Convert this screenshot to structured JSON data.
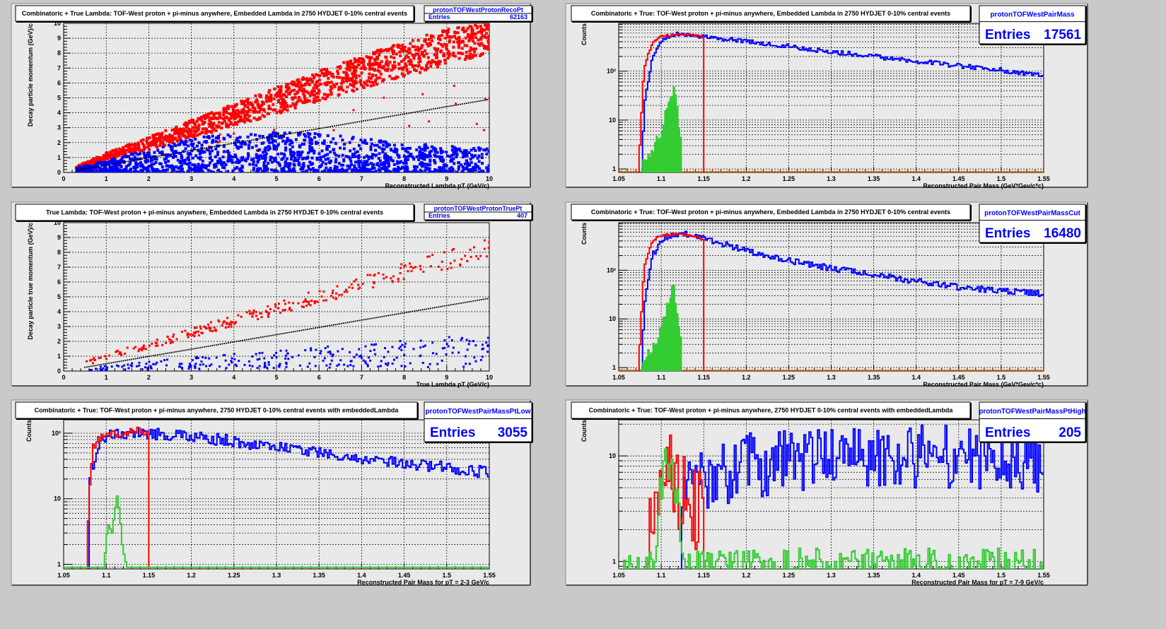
{
  "colors": {
    "red": "#ff0000",
    "blue": "#0000ff",
    "green": "#33cc33",
    "black": "#000000",
    "orange": "#ff8000"
  },
  "chart_data": [
    {
      "type": "scatter",
      "title": "Combinatoric + True Lambda: TOF-West proton + pi-minus anywhere, Embedded Lambda in 2750 HYDJET 0-10% central events",
      "stats": {
        "name": "protonTOFWestProtonRecoPt",
        "entries_label": "Entries",
        "entries": "62163",
        "size": "small"
      },
      "xlabel": "Reconstructed Lambda pT (GeV/c)",
      "ylabel": "Decay particle momentum (GeV)/c",
      "xlim": [
        0,
        10
      ],
      "ylim": [
        0,
        10
      ],
      "log_y": false,
      "x_ticks": [
        "0",
        "1",
        "2",
        "3",
        "4",
        "5",
        "6",
        "7",
        "8",
        "9",
        "10"
      ],
      "y_ticks": [
        "0",
        "1",
        "2",
        "3",
        "4",
        "5",
        "6",
        "7",
        "8",
        "9",
        "10"
      ],
      "grid": true,
      "series": [
        {
          "color": "red",
          "density": "dense",
          "x_min": 0.3,
          "x_max": 10,
          "band": {
            "lower": {
              "x": [
                0.3,
                1,
                2,
                3,
                4,
                5,
                6,
                7,
                8,
                9,
                10
              ],
              "y": [
                0.3,
                0.8,
                1.5,
                2.3,
                3.1,
                3.9,
                4.8,
                5.6,
                6.4,
                7.2,
                8.0
              ]
            },
            "upper": {
              "x": [
                0.3,
                1,
                2,
                3,
                4,
                5,
                6,
                7,
                8,
                9,
                10
              ],
              "y": [
                0.4,
                1.3,
                2.4,
                3.5,
                4.6,
                5.7,
                6.8,
                7.8,
                8.8,
                9.6,
                10.0
              ]
            }
          }
        },
        {
          "color": "blue",
          "density": "dense",
          "x_min": 0.3,
          "x_max": 10,
          "band": {
            "lower": {
              "x": [
                0.3,
                10
              ],
              "y": [
                0,
                0
              ]
            },
            "upper": {
              "x": [
                0.3,
                1,
                2,
                3,
                4,
                5,
                6,
                7,
                8,
                9,
                10
              ],
              "y": [
                0.3,
                0.8,
                1.6,
                2.3,
                2.6,
                2.7,
                2.6,
                2.3,
                2.0,
                1.8,
                1.7
              ]
            }
          }
        },
        {
          "color": "black",
          "density": "line",
          "x_min": 0.3,
          "x_max": 10,
          "band": {
            "lower": {
              "x": [
                0.3,
                10
              ],
              "y": [
                0.15,
                4.9
              ]
            },
            "upper": {
              "x": [
                0.3,
                10
              ],
              "y": [
                0.15,
                4.9
              ]
            }
          }
        }
      ]
    },
    {
      "type": "histogram",
      "title": "Combinatoric + True: TOF-West proton + pi-minus anywhere, Embedded Lambda in 2750 HYDJET 0-10% central events",
      "stats": {
        "name": "protonTOFWestPairMass",
        "entries_label": "Entries",
        "entries": "17561",
        "size": "large"
      },
      "xlabel": "Reconstructed Pair Mass (GeV*Gev/c*c)",
      "ylabel": "Counts",
      "xlim": [
        1.05,
        1.55
      ],
      "ylim": [
        0.85,
        950
      ],
      "log_y": true,
      "x_ticks": [
        "1.05",
        "1.1",
        "1.15",
        "1.2",
        "1.25",
        "1.3",
        "1.35",
        "1.4",
        "1.45",
        "1.5",
        "1.55"
      ],
      "y_ticks": [
        {
          "v": 1,
          "label": "1"
        },
        {
          "v": 10,
          "label": "10"
        },
        {
          "v": 100,
          "label": "10²"
        }
      ],
      "grid": true,
      "series": [
        {
          "color": "blue",
          "style": "step",
          "x_start": 1.078,
          "x_end": 1.55,
          "x": [
            1.078,
            1.08,
            1.09,
            1.1,
            1.11,
            1.12,
            1.13,
            1.15,
            1.2,
            1.25,
            1.3,
            1.35,
            1.4,
            1.45,
            1.5,
            1.55
          ],
          "y": [
            2,
            20,
            200,
            420,
            520,
            560,
            560,
            500,
            400,
            320,
            250,
            200,
            160,
            130,
            105,
            80
          ],
          "noise": 0.07
        },
        {
          "color": "red",
          "style": "step",
          "x_start": 1.073,
          "x_end": 1.15,
          "x": [
            1.073,
            1.075,
            1.078,
            1.08,
            1.09,
            1.1,
            1.12,
            1.14,
            1.15
          ],
          "y": [
            0.85,
            3,
            30,
            120,
            400,
            520,
            560,
            540,
            500
          ],
          "noise": 0.03,
          "drop_to_floor": true
        },
        {
          "color": "green",
          "style": "filled",
          "x_start": 1.076,
          "x_end": 1.124,
          "x": [
            1.076,
            1.08,
            1.09,
            1.1,
            1.105,
            1.11,
            1.115,
            1.12,
            1.124
          ],
          "y": [
            0.9,
            1.4,
            2.5,
            6,
            14,
            30,
            45,
            12,
            3
          ],
          "noise": 0.15
        }
      ]
    },
    {
      "type": "scatter",
      "title": "True Lambda: TOF-West proton + pi-minus anywhere, Embedded Lambda in 2750 HYDJET 0-10% central events",
      "stats": {
        "name": "protonTOFWestProtonTruePt",
        "entries_label": "Entries",
        "entries": "407",
        "size": "small"
      },
      "xlabel": "True Lambda pT (GeV/c)",
      "ylabel": "Decay particle true momentum (GeV)/c",
      "xlim": [
        0,
        10
      ],
      "ylim": [
        0,
        10
      ],
      "log_y": false,
      "x_ticks": [
        "0",
        "1",
        "2",
        "3",
        "4",
        "5",
        "6",
        "7",
        "8",
        "9",
        "10"
      ],
      "y_ticks": [
        "0",
        "1",
        "2",
        "3",
        "4",
        "5",
        "6",
        "7",
        "8",
        "9",
        "10"
      ],
      "grid": true,
      "series": [
        {
          "color": "red",
          "density": "sparse",
          "x_min": 0.5,
          "x_max": 10,
          "band": {
            "lower": {
              "x": [
                0.5,
                10
              ],
              "y": [
                0.35,
                7.6
              ]
            },
            "upper": {
              "x": [
                0.5,
                10
              ],
              "y": [
                0.7,
                9.0
              ]
            }
          }
        },
        {
          "color": "blue",
          "density": "sparse",
          "x_min": 0.5,
          "x_max": 10,
          "band": {
            "lower": {
              "x": [
                0.5,
                10
              ],
              "y": [
                0.05,
                0.3
              ]
            },
            "upper": {
              "x": [
                0.5,
                4,
                10
              ],
              "y": [
                0.25,
                1.2,
                2.5
              ]
            }
          }
        },
        {
          "color": "black",
          "density": "line",
          "x_min": 0.5,
          "x_max": 10,
          "band": {
            "lower": {
              "x": [
                0.5,
                10
              ],
              "y": [
                0.25,
                4.9
              ]
            },
            "upper": {
              "x": [
                0.5,
                10
              ],
              "y": [
                0.25,
                4.9
              ]
            }
          }
        }
      ]
    },
    {
      "type": "histogram",
      "title": "Combinatoric + True: TOF-West proton + pi-minus anywhere, Embedded Lambda in 2750 HYDJET 0-10% central events",
      "stats": {
        "name": "protonTOFWestPairMassCut",
        "entries_label": "Entries",
        "entries": "16480",
        "size": "large"
      },
      "xlabel": "Reconstructed Pair Mass (GeV*Gev/c*c)",
      "ylabel": "Counts",
      "xlim": [
        1.05,
        1.55
      ],
      "ylim": [
        0.85,
        950
      ],
      "log_y": true,
      "x_ticks": [
        "1.05",
        "1.1",
        "1.15",
        "1.2",
        "1.25",
        "1.3",
        "1.35",
        "1.4",
        "1.45",
        "1.5",
        "1.55"
      ],
      "y_ticks": [
        {
          "v": 1,
          "label": "1"
        },
        {
          "v": 10,
          "label": "10"
        },
        {
          "v": 100,
          "label": "10²"
        }
      ],
      "grid": true,
      "series": [
        {
          "color": "blue",
          "style": "step",
          "x_start": 1.078,
          "x_end": 1.55,
          "x": [
            1.078,
            1.08,
            1.09,
            1.1,
            1.11,
            1.12,
            1.13,
            1.15,
            1.2,
            1.25,
            1.3,
            1.35,
            1.4,
            1.45,
            1.5,
            1.55
          ],
          "y": [
            2,
            20,
            200,
            420,
            520,
            560,
            560,
            450,
            250,
            160,
            110,
            80,
            60,
            45,
            38,
            33
          ],
          "noise": 0.09
        },
        {
          "color": "red",
          "style": "step",
          "x_start": 1.073,
          "x_end": 1.15,
          "x": [
            1.073,
            1.075,
            1.078,
            1.08,
            1.09,
            1.1,
            1.12,
            1.14,
            1.15
          ],
          "y": [
            0.85,
            3,
            30,
            120,
            400,
            520,
            560,
            480,
            430
          ],
          "noise": 0.03,
          "drop_to_floor": true
        },
        {
          "color": "green",
          "style": "filled",
          "x_start": 1.076,
          "x_end": 1.124,
          "x": [
            1.076,
            1.08,
            1.09,
            1.1,
            1.105,
            1.11,
            1.115,
            1.12,
            1.124
          ],
          "y": [
            0.9,
            1.4,
            2.5,
            6,
            14,
            30,
            45,
            12,
            3
          ],
          "noise": 0.15
        }
      ]
    },
    {
      "type": "histogram",
      "title": "Combinatoric + True: TOF-West proton + pi-minus anywhere, 2750 HYDJET 0-10% central events with embeddedLambda",
      "stats": {
        "name": "protonTOFWestPairMassPtLow",
        "entries_label": "Entries",
        "entries": "3055",
        "size": "large"
      },
      "xlabel": "Reconstructed Pair Mass for pT = 2-3 GeV/c",
      "ylabel": "Counts",
      "xlim": [
        1.05,
        1.55
      ],
      "ylim": [
        0.85,
        160
      ],
      "log_y": true,
      "x_ticks": [
        "1.05",
        "1.1",
        "1.15",
        "1.2",
        "1.25",
        "1.3",
        "1.35",
        "1.4",
        "1.45",
        "1.5",
        "1.55"
      ],
      "y_ticks": [
        {
          "v": 1,
          "label": "1"
        },
        {
          "v": 10,
          "label": "10"
        },
        {
          "v": 100,
          "label": "10²"
        }
      ],
      "grid": true,
      "series": [
        {
          "color": "blue",
          "style": "step",
          "x_start": 1.08,
          "x_end": 1.55,
          "x": [
            1.08,
            1.09,
            1.1,
            1.12,
            1.15,
            1.2,
            1.25,
            1.3,
            1.35,
            1.4,
            1.45,
            1.5,
            1.55
          ],
          "y": [
            20,
            60,
            90,
            100,
            100,
            90,
            75,
            60,
            50,
            42,
            35,
            30,
            25
          ],
          "noise": 0.13
        },
        {
          "color": "red",
          "style": "step",
          "x_start": 1.077,
          "x_end": 1.15,
          "x": [
            1.077,
            1.079,
            1.082,
            1.085,
            1.09,
            1.1,
            1.12,
            1.14,
            1.15
          ],
          "y": [
            0.85,
            5,
            25,
            60,
            80,
            95,
            100,
            110,
            95
          ],
          "noise": 0.08,
          "drop_to_floor": true
        },
        {
          "color": "green",
          "style": "step",
          "x_start": 1.05,
          "x_end": 1.55,
          "x": [
            1.05,
            1.098,
            1.1,
            1.103,
            1.107,
            1.11,
            1.113,
            1.116,
            1.119,
            1.122,
            1.125,
            1.55
          ],
          "y": [
            0.9,
            0.9,
            2.5,
            4,
            3,
            6,
            11,
            6,
            2,
            1.2,
            0.9,
            0.9
          ],
          "noise": 0.0
        }
      ]
    },
    {
      "type": "histogram",
      "title": "Combinatoric + True: TOF-West proton + pi-minus anywhere, 2750 HYDJET 0-10% central events with embeddedLambda",
      "stats": {
        "name": "protonTOFWestPairMassPtHigh",
        "entries_label": "Entries",
        "entries": "205",
        "size": "large"
      },
      "xlabel": "Reconstructed Pair Mass for pT = 7-9 GeV/c",
      "ylabel": "Counts",
      "xlim": [
        1.05,
        1.55
      ],
      "ylim": [
        0.85,
        22
      ],
      "log_y": true,
      "x_ticks": [
        "1.05",
        "1.1",
        "1.15",
        "1.2",
        "1.25",
        "1.3",
        "1.35",
        "1.4",
        "1.45",
        "1.5",
        "1.55"
      ],
      "y_ticks": [
        {
          "v": 1,
          "label": "1"
        },
        {
          "v": 10,
          "label": "10"
        }
      ],
      "grid": true,
      "series": [
        {
          "color": "blue",
          "style": "step",
          "x_start": 1.125,
          "x_end": 1.55,
          "x": [
            1.125,
            1.15,
            1.2,
            1.3,
            1.4,
            1.5,
            1.55
          ],
          "y": [
            4,
            6,
            8,
            10,
            10,
            10,
            9
          ],
          "noise": 0.45
        },
        {
          "color": "red",
          "style": "step",
          "x_start": 1.085,
          "x_end": 1.15,
          "x": [
            1.085,
            1.09,
            1.1,
            1.11,
            1.12,
            1.13,
            1.14,
            1.15
          ],
          "y": [
            1.2,
            3,
            6,
            7,
            5,
            4,
            3,
            3
          ],
          "noise": 0.55,
          "drop_to_floor": true
        },
        {
          "color": "green",
          "style": "step",
          "x_start": 1.05,
          "x_end": 1.55,
          "x": [
            1.05,
            1.092,
            1.095,
            1.1,
            1.105,
            1.11,
            1.115,
            1.12,
            1.125,
            1.13,
            1.55
          ],
          "y": [
            0.9,
            0.9,
            2,
            5,
            8,
            8,
            6,
            3,
            1.5,
            0.9,
            0.9
          ],
          "noise": 0.25
        }
      ]
    }
  ]
}
